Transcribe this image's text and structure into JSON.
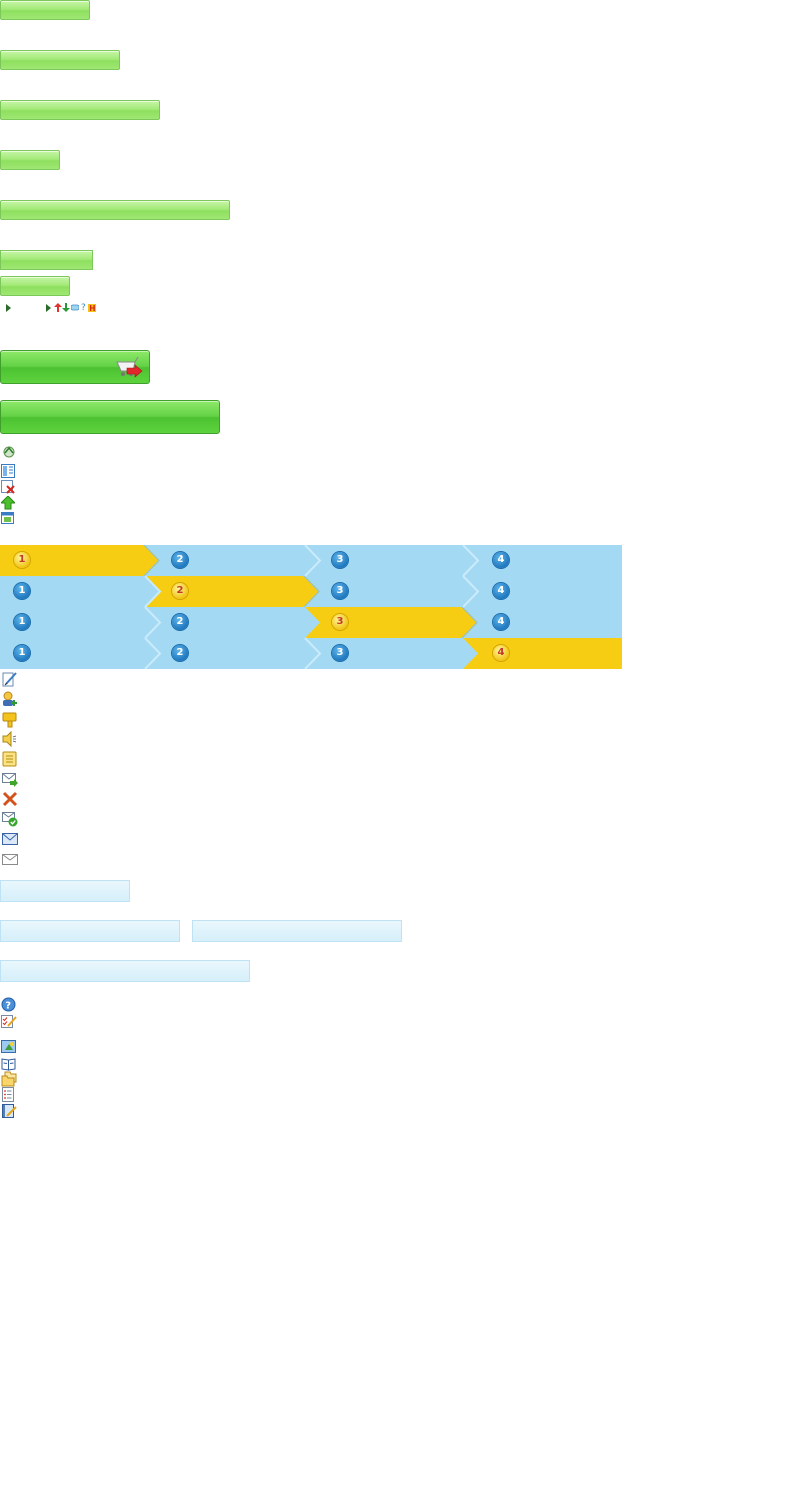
{
  "colors": {
    "green_button": "#a4ea79",
    "green_big_button": "#5ed33e",
    "step_active": "#f7cd13",
    "step_inactive": "#a4d9f4",
    "step_number_blue": "#1f77be",
    "bar_light_blue": "#d6effa"
  },
  "green_buttons": [
    {
      "label": ""
    },
    {
      "label": ""
    },
    {
      "label": ""
    },
    {
      "label": ""
    },
    {
      "label": ""
    },
    {
      "label": ""
    },
    {
      "label": ""
    }
  ],
  "mini_icons": [
    "play-arrow-icon",
    "play-arrow-icon",
    "up-arrow-icon",
    "down-arrow-icon",
    "comment-icon",
    "help-icon",
    "h-icon"
  ],
  "big_buttons": [
    {
      "label": "",
      "icon": "cart-arrow-icon"
    },
    {
      "label": ""
    }
  ],
  "icon_list_1": [
    "recycle-icon",
    "columns-icon",
    "delete-icon",
    "upload-arrow-icon",
    "window-icon"
  ],
  "steps": {
    "numbers": [
      "1",
      "2",
      "3",
      "4"
    ],
    "active_rows": [
      1,
      2,
      3,
      4
    ]
  },
  "icon_list_2": [
    "edit-document-icon",
    "add-user-icon",
    "thumbs-down-icon",
    "speaker-icon",
    "note-icon",
    "forward-mail-icon",
    "close-x-icon",
    "mail-check-icon",
    "envelope-blue-icon",
    "envelope-gray-icon"
  ],
  "blue_bars": [
    {
      "label": ""
    },
    {
      "label": ""
    },
    {
      "label": ""
    },
    {
      "label": ""
    }
  ],
  "icon_list_3": [
    "help-circle-icon",
    "checklist-edit-icon"
  ],
  "icon_list_4": [
    "image-star-icon",
    "open-book-icon",
    "folders-icon",
    "list-document-icon",
    "notebook-edit-icon"
  ]
}
